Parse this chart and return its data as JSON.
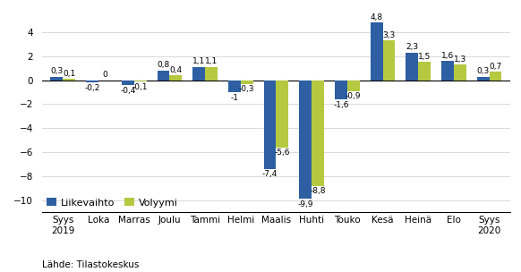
{
  "categories": [
    "Syys\n2019",
    "Loka",
    "Marras",
    "Joulu",
    "Tammi",
    "Helmi",
    "Maalis",
    "Huhti",
    "Touko",
    "Kesä",
    "Heinä",
    "Elo",
    "Syys\n2020"
  ],
  "liikevaihto": [
    0.3,
    -0.2,
    -0.4,
    0.8,
    1.1,
    -1.0,
    -7.4,
    -9.9,
    -1.6,
    4.8,
    2.3,
    1.6,
    0.3
  ],
  "volyymi": [
    0.1,
    0.0,
    -0.1,
    0.4,
    1.1,
    -0.3,
    -5.6,
    -8.8,
    -0.9,
    3.3,
    1.5,
    1.3,
    0.7
  ],
  "color_liikevaihto": "#2e5fa3",
  "color_volyymi": "#b5c840",
  "tick_fontsize": 7.5,
  "label_fontsize": 6.5,
  "legend_fontsize": 8,
  "source_text": "Lähde: Tilastokeskus",
  "ylim": [
    -11,
    6
  ],
  "yticks": [
    -10,
    -8,
    -6,
    -4,
    -2,
    0,
    2,
    4
  ],
  "bar_width": 0.35,
  "legend_labels": [
    "Liikevaihto",
    "Volyymi"
  ]
}
